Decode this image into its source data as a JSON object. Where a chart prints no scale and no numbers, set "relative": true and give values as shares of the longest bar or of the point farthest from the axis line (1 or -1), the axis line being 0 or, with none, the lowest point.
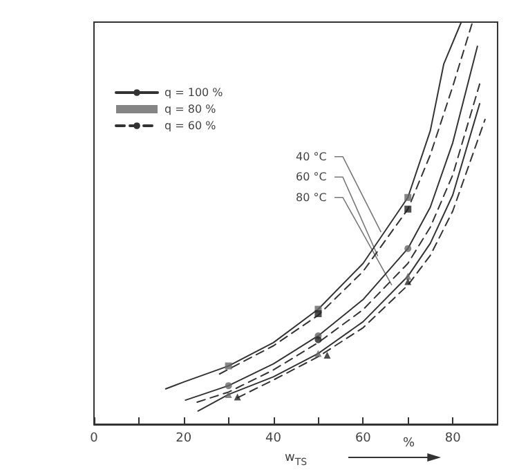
{
  "chart_data": {
    "type": "line",
    "relative": true,
    "xlabel": "w$_{TS}$",
    "xlim": [
      0,
      90
    ],
    "xticks": [
      0,
      {
        "value": 10,
        "label": null
      },
      20,
      {
        "value": 30,
        "label": null
      },
      40,
      {
        "value": 50,
        "label": null
      },
      60,
      {
        "value": 70,
        "label": null
      },
      80
    ],
    "grid": false,
    "legend": "top left",
    "tick_labels": "x",
    "series": [
      {
        "name": "q = 100 %",
        "line_style": "solid",
        "marker": "none",
        "color": "#333333",
        "x": [
          16,
          20,
          30,
          40,
          50,
          60,
          70,
          75,
          78,
          81.9
        ],
        "values": [
          0.088,
          0.105,
          0.145,
          0.203,
          0.286,
          0.4,
          0.564,
          0.73,
          0.896,
          1.0
        ]
      },
      {
        "line_style": "solid",
        "marker": "none",
        "color": "#333333",
        "x": [
          20.4,
          30,
          40,
          50,
          60,
          70,
          75,
          80,
          85.5
        ],
        "values": [
          0.06,
          0.096,
          0.15,
          0.22,
          0.31,
          0.437,
          0.54,
          0.7,
          0.94
        ]
      },
      {
        "line_style": "solid",
        "marker": "none",
        "color": "#333333",
        "x": [
          23.2,
          30,
          40,
          50,
          60,
          70,
          75,
          80,
          86
        ],
        "values": [
          0.033,
          0.074,
          0.118,
          0.176,
          0.255,
          0.368,
          0.45,
          0.57,
          0.797
        ]
      },
      {
        "name": "q = 80 %",
        "type": "scatter",
        "marker": "square",
        "color": "#666666",
        "x": [
          30,
          50,
          70
        ],
        "values": [
          0.145,
          0.286,
          0.564
        ]
      },
      {
        "type": "scatter",
        "marker": "circle",
        "color": "#666666",
        "x": [
          30,
          50,
          70
        ],
        "values": [
          0.096,
          0.22,
          0.437
        ]
      },
      {
        "type": "scatter",
        "marker": "triangle",
        "color": "#666666",
        "x": [
          30,
          50,
          70
        ],
        "values": [
          0.074,
          0.176,
          0.368
        ]
      },
      {
        "name": "q = 60 %",
        "line_style": "dashed",
        "marker": "none",
        "color": "#333333",
        "x": [
          28,
          30,
          40,
          50,
          60,
          70,
          75,
          80,
          84.4
        ],
        "values": [
          0.125,
          0.137,
          0.195,
          0.271,
          0.38,
          0.535,
          0.67,
          0.84,
          1.0
        ]
      },
      {
        "line_style": "dashed",
        "marker": "none",
        "color": "#333333",
        "x": [
          23,
          30,
          40,
          50,
          60,
          70,
          75,
          80,
          86
        ],
        "values": [
          0.055,
          0.08,
          0.135,
          0.203,
          0.285,
          0.4,
          0.49,
          0.62,
          0.846
        ]
      },
      {
        "line_style": "dashed",
        "marker": "none",
        "color": "#333333",
        "x": [
          32,
          40,
          50,
          60,
          70,
          75,
          80,
          87.2
        ],
        "values": [
          0.066,
          0.11,
          0.168,
          0.24,
          0.346,
          0.42,
          0.53,
          0.758
        ]
      },
      {
        "type": "scatter",
        "marker": "square",
        "color": "#222222",
        "x": [
          50,
          70
        ],
        "values": [
          0.275,
          0.535
        ]
      },
      {
        "type": "scatter",
        "marker": "circle",
        "color": "#222222",
        "x": [
          50
        ],
        "values": [
          0.21
        ]
      },
      {
        "type": "scatter",
        "marker": "triangle",
        "color": "#222222",
        "x": [
          32,
          52,
          70
        ],
        "values": [
          0.068,
          0.172,
          0.355
        ]
      }
    ],
    "annotations": [
      {
        "text": "40 °C",
        "x": 64,
        "y": 0.478
      },
      {
        "text": "60 °C",
        "x": 63.3,
        "y": 0.418
      },
      {
        "text": "80 °C",
        "x": 66.4,
        "y": 0.346
      },
      "%"
    ]
  }
}
